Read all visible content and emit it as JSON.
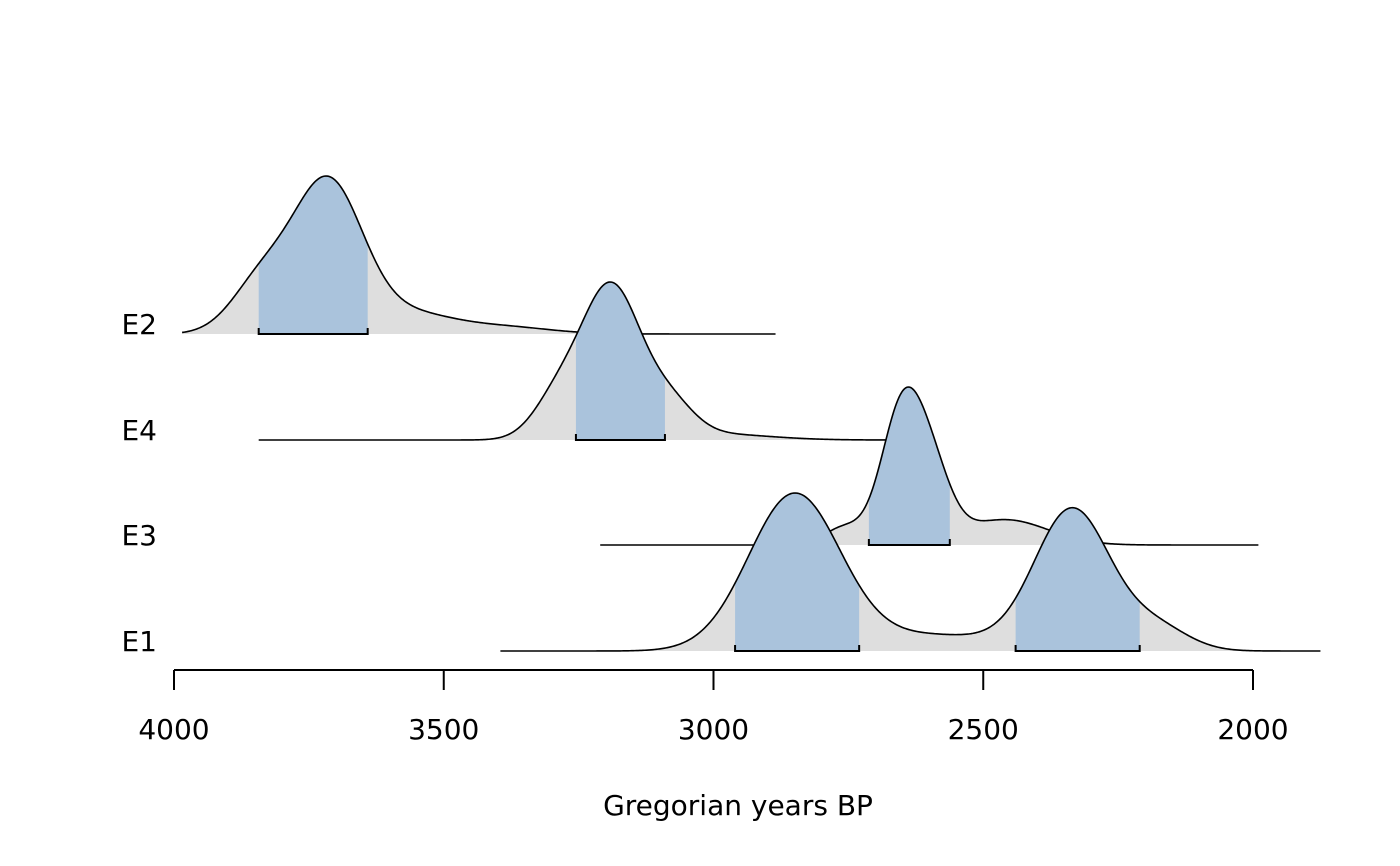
{
  "chart_data": {
    "type": "area",
    "xlabel": "Gregorian years BP",
    "xlim": [
      4000,
      2000
    ],
    "x_ticks": [
      4000,
      3500,
      3000,
      2500,
      2000
    ],
    "x_tick_labels": [
      "4000",
      "3500",
      "3000",
      "2500",
      "2000"
    ],
    "colors": {
      "density": "#dedede",
      "hpd": "#aac3dc",
      "line": "#000000"
    },
    "series": [
      {
        "name": "E2",
        "range": [
          3985,
          2885
        ],
        "components": [
          {
            "mu": 3715,
            "sigma": 65,
            "w": 1.0
          },
          {
            "mu": 3840,
            "sigma": 55,
            "w": 0.32
          },
          {
            "mu": 3560,
            "sigma": 75,
            "w": 0.12
          },
          {
            "mu": 3400,
            "sigma": 90,
            "w": 0.05
          }
        ],
        "hpd": [
          [
            3843,
            3641
          ]
        ]
      },
      {
        "name": "E4",
        "range": [
          3843,
          2645
        ],
        "components": [
          {
            "mu": 3190,
            "sigma": 55,
            "w": 1.0
          },
          {
            "mu": 3290,
            "sigma": 45,
            "w": 0.25
          },
          {
            "mu": 3080,
            "sigma": 45,
            "w": 0.2
          },
          {
            "mu": 3000,
            "sigma": 100,
            "w": 0.04
          }
        ],
        "hpd": [
          [
            3255,
            3090
          ]
        ]
      },
      {
        "name": "E3",
        "range": [
          3210,
          1990
        ],
        "components": [
          {
            "mu": 2648,
            "sigma": 40,
            "w": 1.0
          },
          {
            "mu": 2590,
            "sigma": 35,
            "w": 0.35
          },
          {
            "mu": 2460,
            "sigma": 80,
            "w": 0.18
          },
          {
            "mu": 2760,
            "sigma": 35,
            "w": 0.12
          }
        ],
        "hpd": [
          [
            2712,
            2562
          ]
        ]
      },
      {
        "name": "E1",
        "range": [
          3395,
          1875
        ],
        "components": [
          {
            "mu": 2850,
            "sigma": 85,
            "w": 1.0
          },
          {
            "mu": 2335,
            "sigma": 70,
            "w": 0.9
          },
          {
            "mu": 2590,
            "sigma": 120,
            "w": 0.1
          },
          {
            "mu": 2180,
            "sigma": 60,
            "w": 0.15
          }
        ],
        "hpd": [
          [
            2960,
            2730
          ],
          [
            2440,
            2210
          ]
        ]
      }
    ]
  }
}
